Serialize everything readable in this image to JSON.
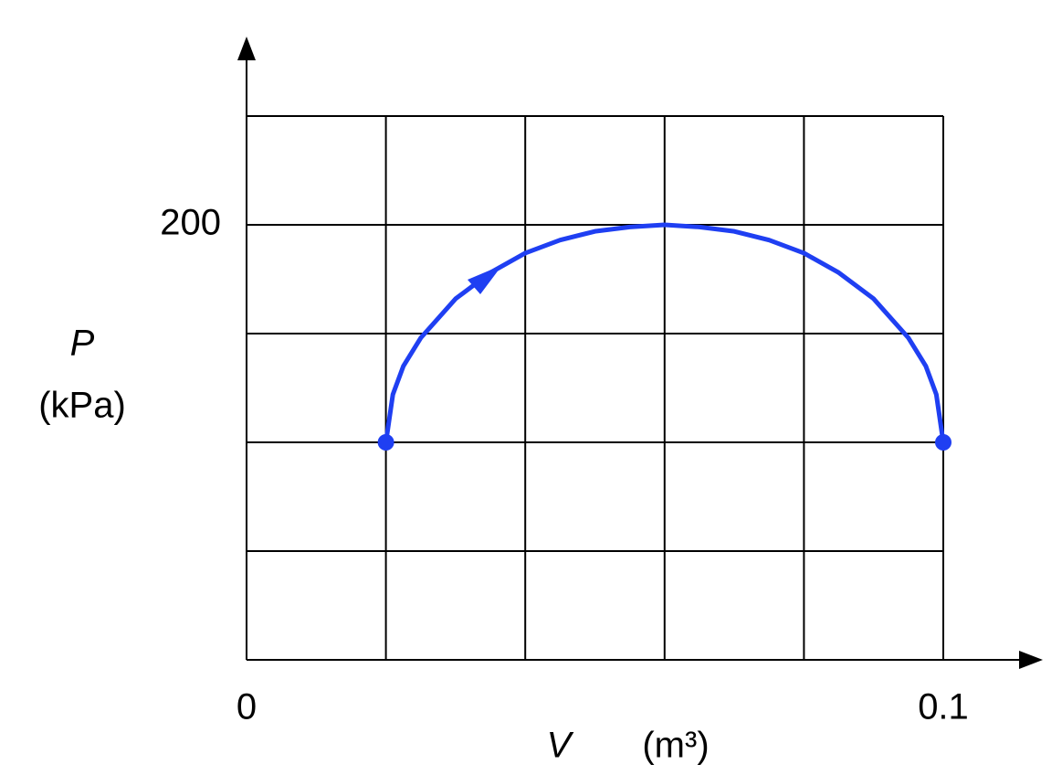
{
  "chart_data": {
    "type": "line",
    "ylabel": "P",
    "yunit": "(kPa)",
    "xlabel": "V",
    "xunit": "(m³)",
    "xlim": [
      0,
      0.1
    ],
    "ylim": [
      0,
      250
    ],
    "xticks": [
      0,
      0.1
    ],
    "yticks": [
      200
    ],
    "xgrid": [
      0.02,
      0.04,
      0.06,
      0.08,
      0.1
    ],
    "ygrid": [
      50,
      100,
      150,
      200,
      250
    ],
    "grid": true,
    "endpoint_markers": true,
    "series": [
      {
        "color": "#1f3ff2",
        "x": [
          0.02,
          0.021,
          0.0225,
          0.025,
          0.03,
          0.035,
          0.04,
          0.045,
          0.05,
          0.055,
          0.06,
          0.065,
          0.07,
          0.075,
          0.08,
          0.085,
          0.09,
          0.095,
          0.0975,
          0.099,
          0.1
        ],
        "values": [
          100,
          122,
          135,
          148,
          166,
          178,
          187,
          193,
          197,
          199,
          200,
          199,
          197,
          193,
          187,
          178,
          166,
          148,
          135,
          122,
          100
        ]
      }
    ]
  }
}
